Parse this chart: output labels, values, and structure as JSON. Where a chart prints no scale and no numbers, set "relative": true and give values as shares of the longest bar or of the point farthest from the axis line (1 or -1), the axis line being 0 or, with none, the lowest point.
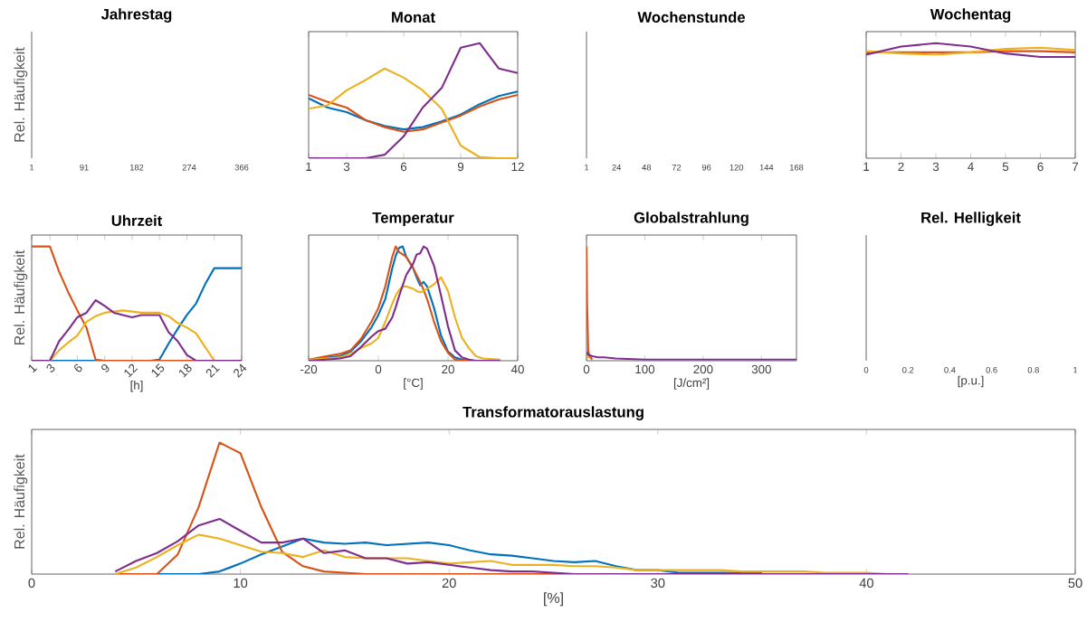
{
  "chart_data": [
    {
      "type": "other",
      "title": "Jahrestag",
      "ylabel": "Rel. Häufigkeit",
      "annotations": [
        "1",
        "91",
        "182",
        "274",
        "366"
      ]
    },
    {
      "type": "line",
      "title": "Monat",
      "relative": true,
      "xlim": [
        1,
        12
      ],
      "xticks": [
        1,
        3,
        6,
        9,
        12
      ],
      "x": [
        1,
        2,
        3,
        4,
        5,
        6,
        7,
        8,
        9,
        10,
        11,
        12
      ],
      "series": [
        {
          "color": "#0072bd",
          "values": [
            0.52,
            0.44,
            0.4,
            0.33,
            0.28,
            0.25,
            0.27,
            0.32,
            0.38,
            0.47,
            0.54,
            0.58
          ]
        },
        {
          "color": "#d95319",
          "values": [
            0.55,
            0.49,
            0.44,
            0.33,
            0.27,
            0.23,
            0.25,
            0.31,
            0.37,
            0.45,
            0.51,
            0.55
          ]
        },
        {
          "color": "#edb120",
          "values": [
            0.43,
            0.46,
            0.59,
            0.68,
            0.78,
            0.7,
            0.59,
            0.43,
            0.11,
            0.01,
            0,
            0
          ]
        },
        {
          "color": "#7e2f8e",
          "values": [
            0,
            0,
            0,
            0,
            0.03,
            0.19,
            0.44,
            0.61,
            0.96,
            1.0,
            0.78,
            0.74
          ]
        }
      ]
    },
    {
      "type": "other",
      "title": "Wochenstunde",
      "annotations": [
        "1",
        "24",
        "48",
        "72",
        "96",
        "120",
        "144",
        "168"
      ]
    },
    {
      "type": "line",
      "title": "Wochentag",
      "relative": true,
      "xlim": [
        1,
        7
      ],
      "xticks": [
        1,
        2,
        3,
        4,
        5,
        6,
        7
      ],
      "x": [
        1,
        2,
        3,
        4,
        5,
        6,
        7
      ],
      "series": [
        {
          "color": "#d95319",
          "values": [
            0.92,
            0.92,
            0.92,
            0.92,
            0.93,
            0.93,
            0.92
          ]
        },
        {
          "color": "#edb120",
          "values": [
            0.93,
            0.91,
            0.9,
            0.92,
            0.95,
            0.96,
            0.94
          ]
        },
        {
          "color": "#7e2f8e",
          "values": [
            0.9,
            0.97,
            1.0,
            0.97,
            0.91,
            0.88,
            0.88
          ]
        }
      ]
    },
    {
      "type": "line",
      "title": "Uhrzeit",
      "ylabel": "Rel. Häufigkeit",
      "xlabel": "[h]",
      "relative": true,
      "xlim": [
        1,
        24
      ],
      "xticks": [
        1,
        3,
        6,
        9,
        12,
        15,
        18,
        21,
        24
      ],
      "x": [
        1,
        2,
        3,
        4,
        5,
        6,
        7,
        8,
        9,
        10,
        11,
        12,
        13,
        14,
        15,
        16,
        17,
        18,
        19,
        20,
        21,
        22,
        23,
        24
      ],
      "series": [
        {
          "color": "#0072bd",
          "values": [
            0,
            0,
            0,
            0,
            0,
            0,
            0,
            0,
            0,
            0,
            0,
            0,
            0,
            0,
            0.01,
            0.15,
            0.28,
            0.4,
            0.5,
            0.67,
            0.81,
            0.81,
            0.81,
            0.81
          ]
        },
        {
          "color": "#d95319",
          "values": [
            1.0,
            1.0,
            1.0,
            0.78,
            0.6,
            0.44,
            0.29,
            0.01,
            0,
            0,
            0,
            0,
            0,
            0,
            0,
            0,
            0,
            0,
            0,
            0,
            null,
            null,
            null,
            null
          ]
        },
        {
          "color": "#edb120",
          "values": [
            0,
            0,
            0,
            0.09,
            0.16,
            0.22,
            0.34,
            0.39,
            0.42,
            0.43,
            0.44,
            0.43,
            0.42,
            0.42,
            0.42,
            0.39,
            0.33,
            0.29,
            0.24,
            0.12,
            0,
            null,
            null,
            null
          ]
        },
        {
          "color": "#7e2f8e",
          "values": [
            0,
            0,
            0,
            0.17,
            0.27,
            0.38,
            0.42,
            0.53,
            0.48,
            0.42,
            0.4,
            0.38,
            0.4,
            0.4,
            0.4,
            0.25,
            0.17,
            0.05,
            0,
            0,
            0,
            0,
            0,
            0
          ]
        }
      ]
    },
    {
      "type": "line",
      "title": "Temperatur",
      "xlabel": "[°C]",
      "relative": true,
      "xlim": [
        -20,
        40
      ],
      "xticks": [
        -20,
        0,
        20,
        40
      ],
      "x": [
        -20,
        -15,
        -11,
        -8,
        -5,
        -2,
        0,
        2,
        4,
        5,
        6,
        7,
        8,
        10,
        11,
        12,
        13,
        14,
        16,
        18,
        20,
        22,
        24,
        26,
        28,
        30,
        35
      ],
      "series": [
        {
          "color": "#0072bd",
          "values": [
            0.01,
            0.03,
            0.04,
            0.08,
            0.17,
            0.29,
            0.4,
            0.54,
            0.81,
            0.92,
            0.99,
            1.0,
            0.91,
            0.81,
            0.73,
            0.66,
            0.69,
            0.65,
            0.46,
            0.22,
            0.08,
            0.03,
            0.01,
            0,
            0,
            null,
            null
          ]
        },
        {
          "color": "#d95319",
          "values": [
            0.01,
            0.04,
            0.06,
            0.09,
            0.19,
            0.34,
            0.46,
            0.65,
            0.91,
            1.0,
            0.95,
            0.93,
            0.91,
            0.81,
            0.75,
            0.69,
            0.62,
            0.54,
            0.34,
            0.17,
            0.07,
            0.01,
            0,
            0,
            0,
            null,
            null
          ]
        },
        {
          "color": "#edb120",
          "values": [
            0.01,
            0.02,
            0.03,
            0.06,
            0.11,
            0.15,
            0.2,
            0.34,
            0.5,
            0.57,
            0.62,
            0.65,
            0.65,
            0.63,
            0.61,
            0.6,
            0.61,
            0.63,
            0.67,
            0.73,
            0.61,
            0.38,
            0.2,
            0.11,
            0.04,
            0.02,
            0.01
          ]
        },
        {
          "color": "#7e2f8e",
          "values": [
            0,
            0.01,
            0.02,
            0.04,
            0.12,
            0.21,
            0.26,
            0.28,
            0.38,
            0.47,
            0.57,
            0.66,
            0.75,
            0.85,
            0.93,
            0.94,
            1.0,
            0.98,
            0.83,
            0.57,
            0.3,
            0.09,
            0.03,
            0.01,
            0,
            0,
            0
          ]
        }
      ]
    },
    {
      "type": "line",
      "title": "Globalstrahlung",
      "xlabel": "[J/cm²]",
      "relative": true,
      "xlim": [
        0,
        360
      ],
      "xticks": [
        0,
        100,
        200,
        300
      ],
      "x": [
        0,
        1,
        3,
        5,
        10,
        20,
        30,
        50,
        100,
        200,
        360
      ],
      "series": [
        {
          "color": "#d95319",
          "values": [
            1.0,
            0.5,
            0.09,
            0.04,
            0.01,
            null,
            null,
            null,
            null,
            null,
            null
          ]
        },
        {
          "color": "#edb120",
          "values": [
            0.03,
            0.03,
            0.03,
            0.03,
            null,
            null,
            null,
            null,
            null,
            null,
            null
          ]
        },
        {
          "color": "#7e2f8e",
          "values": [
            0.08,
            0.07,
            0.05,
            0.05,
            0.04,
            0.03,
            0.03,
            0.02,
            0.01,
            0.01,
            0.01
          ]
        }
      ]
    },
    {
      "type": "other",
      "title": "Rel. Helligkeit",
      "xlabel": "[p.u.]",
      "annotations": [
        "0",
        "0.2",
        "0.4",
        "0.6",
        "0.8",
        "1"
      ]
    },
    {
      "type": "line",
      "title": "Transformatorauslastung",
      "ylabel": "Rel. Häufigkeit",
      "xlabel": "[%]",
      "relative": true,
      "xlim": [
        0,
        50
      ],
      "xticks": [
        0,
        10,
        20,
        30,
        40,
        50
      ],
      "x": [
        4,
        5,
        6,
        7,
        8,
        9,
        10,
        11,
        12,
        13,
        14,
        15,
        16,
        17,
        18,
        19,
        20,
        21,
        22,
        23,
        24,
        25,
        26,
        27,
        28,
        29,
        30,
        31,
        32,
        33,
        34,
        35,
        36,
        37,
        38,
        39,
        40,
        41,
        42
      ],
      "series": [
        {
          "color": "#0072bd",
          "values": [
            0,
            0,
            0,
            0,
            0,
            0.02,
            0.08,
            0.15,
            0.21,
            0.27,
            0.24,
            0.23,
            0.24,
            0.22,
            0.23,
            0.24,
            0.22,
            0.18,
            0.15,
            0.14,
            0.12,
            0.1,
            0.09,
            0.1,
            0.06,
            0.03,
            0.03,
            0.01,
            0.01,
            0.01,
            0.01,
            0.01,
            null,
            null,
            null,
            null,
            null,
            null,
            null
          ]
        },
        {
          "color": "#d95319",
          "values": [
            0,
            0,
            0,
            0.15,
            0.51,
            1.0,
            0.92,
            0.51,
            0.17,
            0.06,
            0.02,
            0.01,
            0,
            0,
            0,
            0,
            0,
            0,
            0,
            0,
            0,
            0,
            0,
            null,
            null,
            null,
            null,
            null,
            null,
            null,
            null,
            null,
            null,
            null,
            null,
            null,
            null,
            null,
            null
          ]
        },
        {
          "color": "#edb120",
          "values": [
            0,
            0.05,
            0.13,
            0.22,
            0.3,
            0.27,
            0.22,
            0.17,
            0.16,
            0.13,
            0.18,
            0.13,
            0.12,
            0.12,
            0.12,
            0.1,
            0.08,
            0.09,
            0.1,
            0.07,
            0.07,
            0.07,
            0.06,
            0.06,
            0.05,
            0.03,
            0.03,
            0.03,
            0.03,
            0.03,
            0.02,
            0.02,
            0.02,
            0.02,
            0.01,
            0.01,
            0.01,
            0,
            0
          ]
        },
        {
          "color": "#7e2f8e",
          "values": [
            0.02,
            0.1,
            0.16,
            0.25,
            0.37,
            0.42,
            0.33,
            0.24,
            0.24,
            0.27,
            0.16,
            0.18,
            0.12,
            0.12,
            0.08,
            0.09,
            0.07,
            0.05,
            0.03,
            0.02,
            0.02,
            0.01,
            0,
            0,
            0,
            0,
            0,
            0,
            0,
            0,
            0,
            0,
            0,
            0,
            0,
            0,
            0,
            0,
            0
          ]
        }
      ]
    }
  ]
}
